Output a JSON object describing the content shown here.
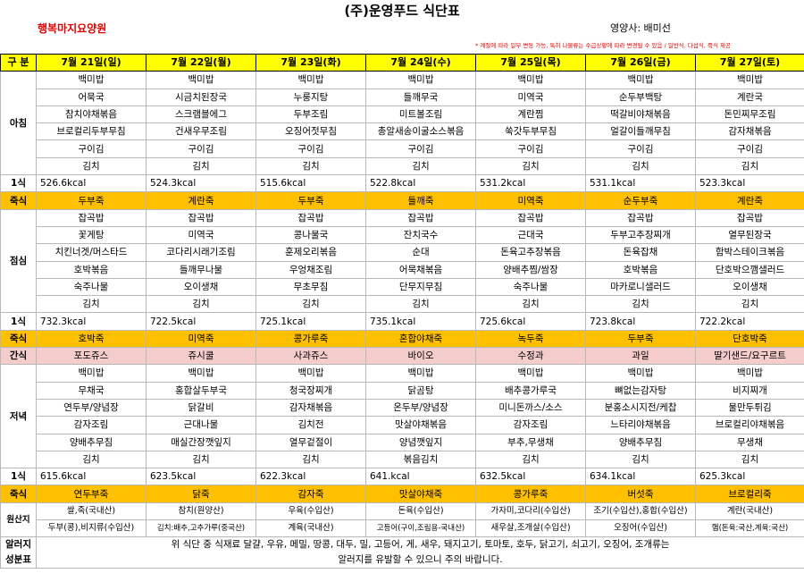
{
  "title": "(주)운영푸드 식단표",
  "facility": "행복마지요양원",
  "dietitian": "영양사: 배미선",
  "note": "* 계절에 따라 일부 변동 가능, 특히 나물류는 수급상황에 따라 변경될 수 있음 / 일반식, 다섭식, 죽식 제공",
  "header": {
    "label": "구 분",
    "days": [
      "7월 21일(일)",
      "7월 22일(월)",
      "7월 23일(화)",
      "7월 24일(수)",
      "7월 25일(목)",
      "7월 26일(금)",
      "7월 27일(토)"
    ]
  },
  "breakfast": {
    "label": "아침",
    "rows": [
      [
        "백미밥",
        "백미밥",
        "백미밥",
        "백미밥",
        "백미밥",
        "백미밥",
        "백미밥"
      ],
      [
        "어묵국",
        "시금치된장국",
        "누룽지탕",
        "들깨무국",
        "미역국",
        "순두부백탕",
        "계란국"
      ],
      [
        "참치야채볶음",
        "스크램블에그",
        "두부조림",
        "미트볼조림",
        "계란찜",
        "떡갈비야채볶음",
        "돈민찌무조림"
      ],
      [
        "브로컬리두부무침",
        "건새우무조림",
        "오징어젓무침",
        "총알새송이굴소스볶음",
        "쑥갓두부무침",
        "얼갈이들깨무침",
        "감자채볶음"
      ],
      [
        "구이김",
        "구이김",
        "구이김",
        "구이김",
        "구이김",
        "구이김",
        "구이김"
      ],
      [
        "김치",
        "김치",
        "김치",
        "김치",
        "김치",
        "김치",
        "김치"
      ]
    ],
    "kcal_label": "1식",
    "kcal": [
      "526.6kcal",
      "524.3kcal",
      "515.6kcal",
      "522.8kcal",
      "531.2kcal",
      "531.1kcal",
      "523.3kcal"
    ],
    "porridge_label": "죽식",
    "porridge": [
      "두부죽",
      "계란죽",
      "두부죽",
      "들깨죽",
      "미역죽",
      "순두부죽",
      "계란죽"
    ]
  },
  "lunch": {
    "label": "점심",
    "rows": [
      [
        "잡곡밥",
        "잡곡밥",
        "잡곡밥",
        "잡곡밥",
        "잡곡밥",
        "잡곡밥",
        "잡곡밥"
      ],
      [
        "꽃게탕",
        "미역국",
        "콩나물국",
        "잔치국수",
        "근대국",
        "두부고추장찌개",
        "열무된장국"
      ],
      [
        "치킨너겟/머스타드",
        "코다리시래기조림",
        "훈제오리볶음",
        "순대",
        "돈육고추장볶음",
        "돈육잡채",
        "함박스테이크볶음"
      ],
      [
        "호박볶음",
        "들깨무나물",
        "우엉채조림",
        "어묵채볶음",
        "양배추찜/쌈장",
        "호박볶음",
        "단호박으깸샐러드"
      ],
      [
        "숙주나물",
        "오이생채",
        "무초무침",
        "단무지무침",
        "숙주나물",
        "마카로니샐러드",
        "오이생채"
      ],
      [
        "김치",
        "김치",
        "김치",
        "김치",
        "김치",
        "김치",
        "김치"
      ]
    ],
    "kcal_label": "1식",
    "kcal": [
      "732.3kcal",
      "722.5kcal",
      "725.1kcal",
      "735.1kcal",
      "725.6kcal",
      "723.8kcal",
      "722.2kcal"
    ],
    "porridge_label": "죽식",
    "porridge": [
      "호박죽",
      "미역죽",
      "콩가루죽",
      "혼합야채죽",
      "녹두죽",
      "두부죽",
      "단호박죽"
    ]
  },
  "snack": {
    "label": "간식",
    "items": [
      "포도쥬스",
      "쥬시쿨",
      "사과쥬스",
      "바이오",
      "수정과",
      "과일",
      "딸기샌드/요구르트"
    ]
  },
  "dinner": {
    "label": "저녁",
    "rows": [
      [
        "백미밥",
        "백미밥",
        "백미밥",
        "백미밥",
        "백미밥",
        "백미밥",
        "백미밥"
      ],
      [
        "무채국",
        "홍합살두부국",
        "청국장찌개",
        "닭곰탕",
        "배추콩가루국",
        "뼈없는감자탕",
        "비지찌개"
      ],
      [
        "연두부/양념장",
        "닭갈비",
        "감자채볶음",
        "온두부/양념장",
        "미니돈까스/소스",
        "분홍소시지전/케찹",
        "물만두튀김"
      ],
      [
        "감자조림",
        "근대나물",
        "김치전",
        "맛살야채볶음",
        "감자조림",
        "느타리야채볶음",
        "브로컬리야채볶음"
      ],
      [
        "양배추무침",
        "매실간장깻잎지",
        "열무겉절이",
        "양념깻잎지",
        "부추,무생채",
        "양배추무침",
        "무생채"
      ],
      [
        "김치",
        "김치",
        "김치",
        "볶음김치",
        "김치",
        "김치",
        "김치"
      ]
    ],
    "kcal_label": "1식",
    "kcal": [
      "615.6kcal",
      "623.5kcal",
      "622.3kcal",
      "641.kcal",
      "632.5kcal",
      "634.1kcal",
      "625.3kcal"
    ],
    "porridge_label": "죽식",
    "porridge": [
      "연두부죽",
      "닭죽",
      "감자죽",
      "맛살야채죽",
      "콩가루죽",
      "버섯죽",
      "브로컬리죽"
    ]
  },
  "origin": {
    "label": "원산지",
    "row1": [
      "쌀,죽(국내산)",
      "참치(원양산)",
      "우육(수입산)",
      "돈육(수입산)",
      "가자미,코다리(수입산)",
      "조기(수입산),홍합(수입산)",
      "계란(국내산)"
    ],
    "row2": [
      "두부(콩),비지류(수입산)",
      "김치:배추,고추가루(중국산)",
      "계육(국내산)",
      "고등어(구이,조림용-국내산)",
      "새우살,조개살(수입산)",
      "오징어(수입산)",
      "햄(돈육:국산,계육:국산)"
    ]
  },
  "allergy": {
    "label_line1": "알러지",
    "label_line2": "성분표",
    "line1": "위 식단 중 식재료 달걀, 우유, 메밀, 땅콩, 대두, 밀, 고등어, 게, 새우, 돼지고기, 토마토, 호두, 닭고기, 쇠고기, 오징어, 조개류는",
    "line2": "알러지를 유발할 수 있으니 주의 바랍니다."
  }
}
